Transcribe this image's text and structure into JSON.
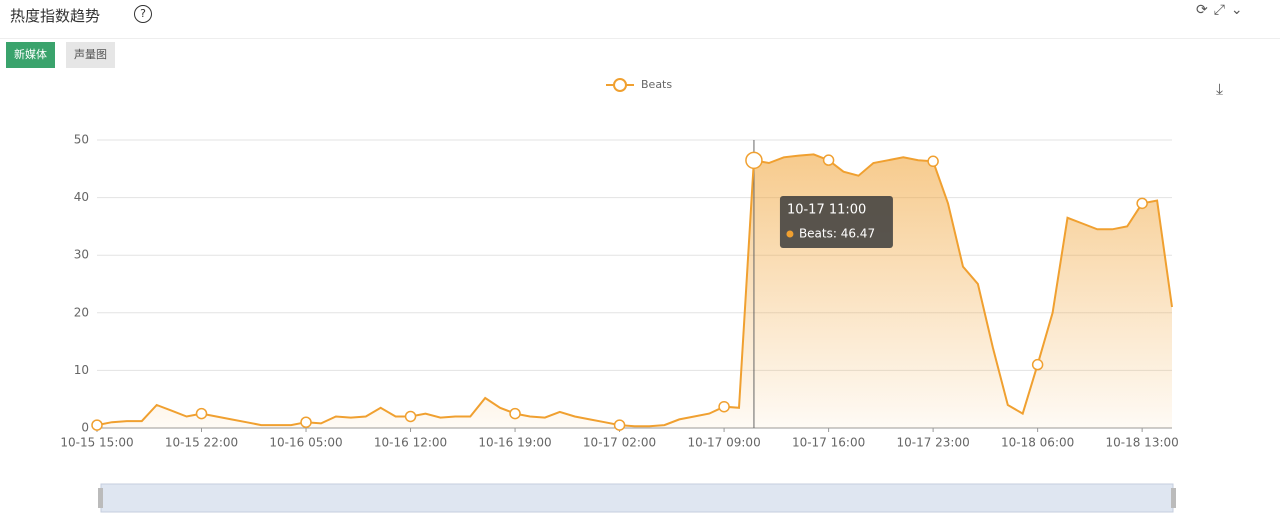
{
  "header": {
    "title": "热度指数趋势"
  },
  "tabs": [
    "新媒体",
    "声量图"
  ],
  "tooltip": {
    "title": "10-17 11:00",
    "text": "Beats: 46.47"
  },
  "chart_data": {
    "type": "line",
    "categories": [
      "10-15 15:00",
      null,
      null,
      null,
      null,
      null,
      null,
      "10-15 22:00",
      null,
      null,
      null,
      null,
      null,
      null,
      "10-16 05:00",
      null,
      null,
      null,
      null,
      null,
      null,
      "10-16 12:00",
      null,
      null,
      null,
      null,
      null,
      null,
      "10-16 19:00",
      null,
      null,
      null,
      null,
      null,
      null,
      "10-17 02:00",
      null,
      null,
      null,
      null,
      null,
      null,
      "10-17 09:00",
      null,
      null,
      null,
      null,
      null,
      null,
      "10-17 16:00",
      null,
      null,
      null,
      null,
      null,
      null,
      "10-17 23:00",
      null,
      null,
      null,
      null,
      null,
      null,
      "10-18 06:00",
      null,
      null,
      null,
      null,
      null,
      null,
      "10-18 13:00",
      null,
      null
    ],
    "series": [
      {
        "name": "Beats",
        "color": "#f0a030",
        "values": [
          0.5,
          1,
          1.2,
          1.2,
          4,
          3,
          2,
          2.5,
          2,
          1.5,
          1,
          0.5,
          0.5,
          0.5,
          1,
          0.8,
          2,
          1.8,
          2,
          3.5,
          2,
          2,
          2.5,
          1.8,
          2,
          2,
          5.2,
          3.5,
          2.5,
          2,
          1.8,
          2.8,
          2,
          1.5,
          1,
          0.5,
          0.3,
          0.3,
          0.5,
          1.5,
          2,
          2.5,
          3.7,
          3.5,
          46.47,
          46,
          47,
          47.3,
          47.5,
          46.5,
          44.5,
          43.8,
          46,
          46.5,
          47,
          46.5,
          46.3,
          39,
          28,
          25,
          14,
          4,
          2.5,
          11,
          20,
          36.5,
          35.5,
          34.5,
          34.5,
          35,
          39,
          39.5,
          21
        ]
      }
    ],
    "ylim": [
      0,
      50
    ],
    "yticks": [
      0,
      10,
      20,
      30,
      40,
      50
    ],
    "grid": true,
    "highlight_index": 44
  }
}
